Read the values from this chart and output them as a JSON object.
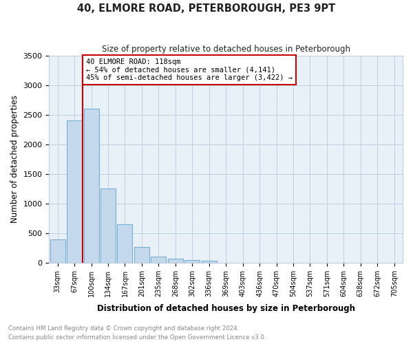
{
  "title": "40, ELMORE ROAD, PETERBOROUGH, PE3 9PT",
  "subtitle": "Size of property relative to detached houses in Peterborough",
  "xlabel": "Distribution of detached houses by size in Peterborough",
  "ylabel": "Number of detached properties",
  "categories": [
    "33sqm",
    "67sqm",
    "100sqm",
    "134sqm",
    "167sqm",
    "201sqm",
    "235sqm",
    "268sqm",
    "302sqm",
    "336sqm",
    "369sqm",
    "403sqm",
    "436sqm",
    "470sqm",
    "504sqm",
    "537sqm",
    "571sqm",
    "604sqm",
    "638sqm",
    "672sqm",
    "705sqm"
  ],
  "values": [
    390,
    2400,
    2600,
    1250,
    650,
    260,
    100,
    65,
    45,
    30,
    0,
    0,
    0,
    0,
    0,
    0,
    0,
    0,
    0,
    0,
    0
  ],
  "bar_color": "#c5d9ec",
  "bar_edge_color": "#7aafd4",
  "vline_x_index": 1.5,
  "vline_color": "#cc0000",
  "annotation_text": "40 ELMORE ROAD: 118sqm\n← 54% of detached houses are smaller (4,141)\n45% of semi-detached houses are larger (3,422) →",
  "annotation_box_color": "#cc0000",
  "ylim": [
    0,
    3500
  ],
  "yticks": [
    0,
    500,
    1000,
    1500,
    2000,
    2500,
    3000,
    3500
  ],
  "footer_line1": "Contains HM Land Registry data © Crown copyright and database right 2024.",
  "footer_line2": "Contains public sector information licensed under the Open Government Licence v3.0.",
  "background_color": "#ffffff",
  "plot_bg_color": "#e8f0f8",
  "grid_color": "#c0cfe0"
}
